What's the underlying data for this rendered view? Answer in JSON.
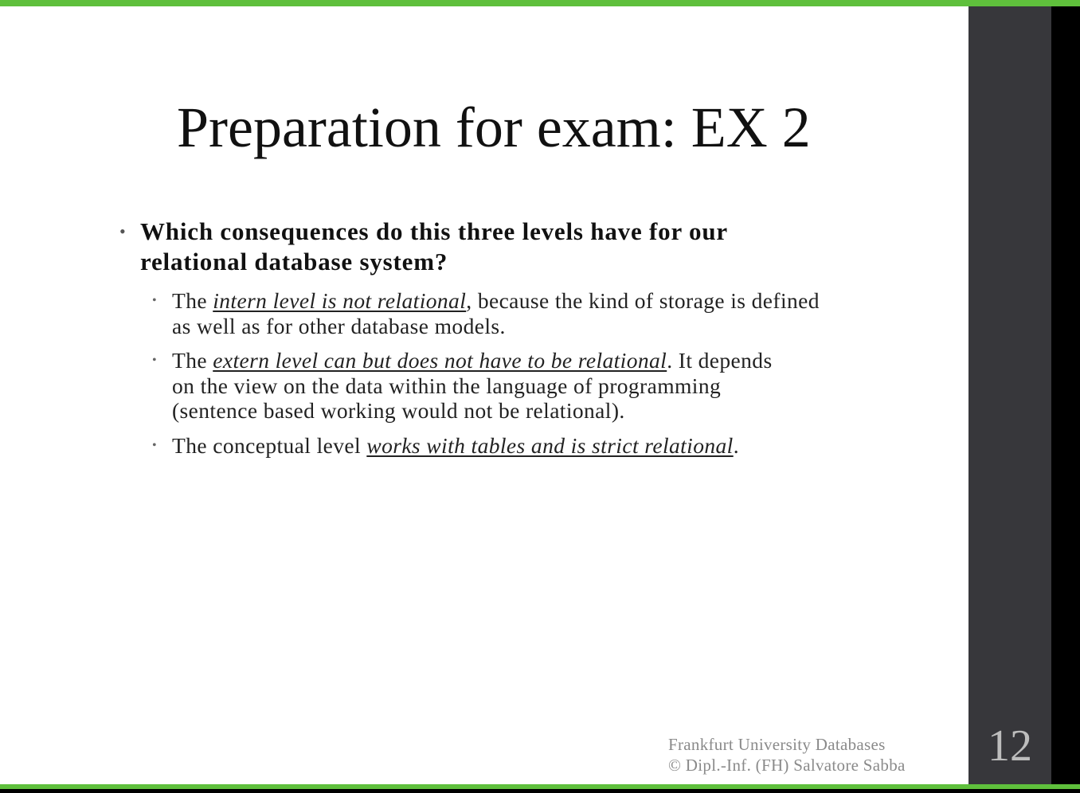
{
  "theme": {
    "accent_green": "#5fc03c",
    "side_panel": "#37373b",
    "page_number_color": "#bdbdbd"
  },
  "slide": {
    "title": "Preparation for exam: EX 2",
    "question": "Which consequences do this three levels have for our relational database system?",
    "points": [
      {
        "prefix": "The ",
        "emphasis": "intern level is not relational",
        "suffix": ", because the kind of storage is defined as well as for other database models."
      },
      {
        "prefix": "The ",
        "emphasis": "extern level can but does not have to be relational",
        "suffix": ". It depends on the view on the data within the language of programming (sentence based working would not be relational)."
      },
      {
        "prefix": "The conceptual level ",
        "emphasis": "works with tables and is strict relational",
        "suffix": "."
      }
    ],
    "footer": {
      "line1": "Frankfurt University Databases",
      "line2": "© Dipl.-Inf. (FH) Salvatore Sabba"
    },
    "page_number": "12"
  }
}
